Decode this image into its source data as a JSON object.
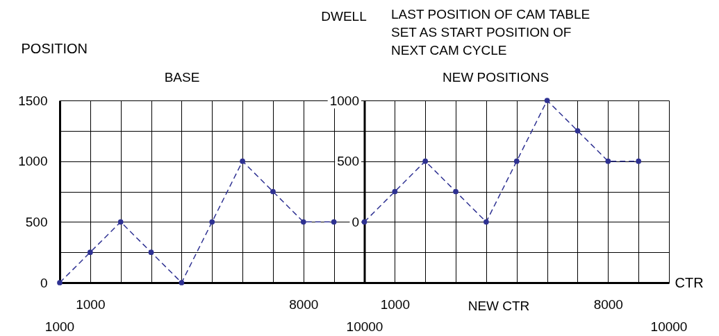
{
  "chart_data": {
    "type": "line",
    "ylabel": "POSITION",
    "xlabel": "CTR",
    "categories": [
      null,
      "1000",
      null,
      null,
      null,
      null,
      null,
      null,
      "8000",
      null,
      null,
      "1000",
      null,
      null,
      null,
      null,
      null,
      null,
      "8000",
      null,
      null
    ],
    "ylim": [
      0,
      1500
    ],
    "y2lim": [
      -500,
      1000
    ],
    "yticks": [
      0,
      {
        "value": 250,
        "label": null
      },
      500,
      {
        "value": 750,
        "label": null
      },
      1000,
      {
        "value": 1250,
        "label": null
      },
      1500
    ],
    "y2ticks": [
      0,
      500,
      1000
    ],
    "grid": true,
    "marker": "circle",
    "line_style": "dashed",
    "series": [
      {
        "color": "#2e3192",
        "values": [
          0,
          250,
          500,
          250,
          0,
          500,
          1000,
          750,
          500,
          500,
          null,
          null,
          null,
          null,
          null,
          null,
          null,
          null,
          null,
          null,
          null
        ]
      },
      {
        "color": "#2e3192",
        "axis": "y2",
        "values": [
          null,
          null,
          null,
          null,
          null,
          null,
          null,
          null,
          null,
          null,
          0,
          250,
          500,
          250,
          0,
          500,
          1000,
          750,
          500,
          500,
          null
        ]
      }
    ],
    "annotations": [
      "BASE",
      "DWELL",
      "LAST POSITION OF CAM TABLE\nSET AS START POSITION OF\nNEXT CAM CYCLE",
      "NEW POSITIONS",
      "NEW CTR",
      "1000",
      "10000",
      "10000"
    ]
  }
}
